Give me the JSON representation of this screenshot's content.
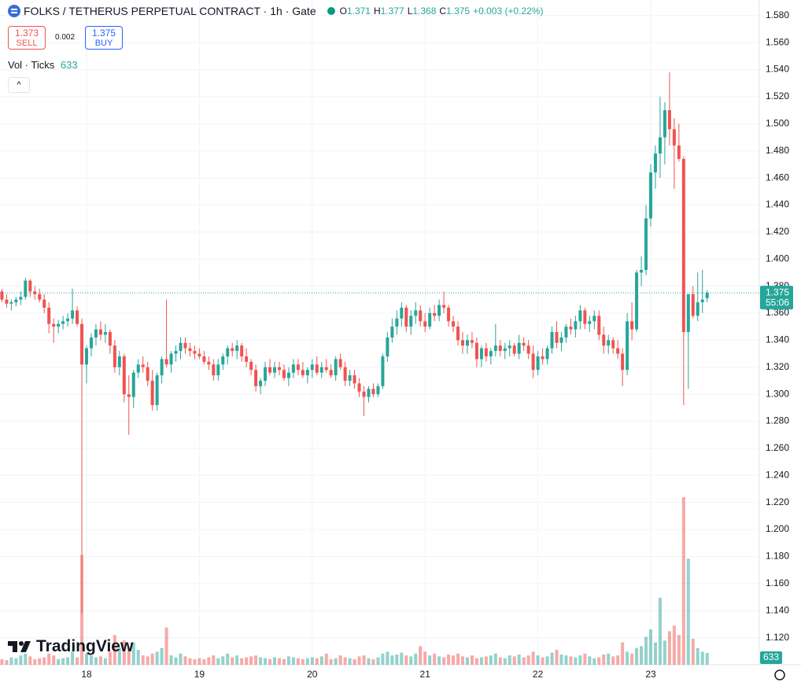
{
  "chart_data": {
    "type": "candlestick",
    "header": {
      "symbol": "FOLKS / TETHERUS PERPETUAL CONTRACT · 1h · Gate",
      "o": "O",
      "h": "H",
      "l": "L",
      "c": "C",
      "change": "+0.003 (+0.22%)",
      "sell_price": "1.373",
      "sell": "SELL",
      "spread": "0.002",
      "buy_price": "1.375",
      "buy": "BUY",
      "volume_title": "Vol · Ticks",
      "countdown": "55:06",
      "brand": "TradingView"
    },
    "up_color": "#26a69a",
    "down_color": "#ef5350",
    "grid": true,
    "ylim": [
      1.1,
      1.5915
    ],
    "yticks": [
      {
        "value": 1.12,
        "label": "1.120"
      },
      {
        "value": 1.14,
        "label": "1.140"
      },
      {
        "value": 1.16,
        "label": "1.160"
      },
      {
        "value": 1.18,
        "label": "1.180"
      },
      {
        "value": 1.2,
        "label": "1.200"
      },
      {
        "value": 1.22,
        "label": "1.220"
      },
      {
        "value": 1.24,
        "label": "1.240"
      },
      {
        "value": 1.26,
        "label": "1.260"
      },
      {
        "value": 1.28,
        "label": "1.280"
      },
      {
        "value": 1.3,
        "label": "1.300"
      },
      {
        "value": 1.32,
        "label": "1.320"
      },
      {
        "value": 1.34,
        "label": "1.340"
      },
      {
        "value": 1.36,
        "label": "1.360"
      },
      {
        "value": 1.38,
        "label": "1.380"
      },
      {
        "value": 1.4,
        "label": "1.400"
      },
      {
        "value": 1.42,
        "label": "1.420"
      },
      {
        "value": 1.44,
        "label": "1.440"
      },
      {
        "value": 1.46,
        "label": "1.460"
      },
      {
        "value": 1.48,
        "label": "1.480"
      },
      {
        "value": 1.5,
        "label": "1.500"
      },
      {
        "value": 1.52,
        "label": "1.520"
      },
      {
        "value": 1.54,
        "label": "1.540"
      },
      {
        "value": 1.56,
        "label": "1.560"
      },
      {
        "value": 1.58,
        "label": "1.580"
      }
    ],
    "volume_ylim": [
      0,
      30000
    ],
    "categories": [
      null,
      null,
      null,
      null,
      null,
      null,
      null,
      null,
      null,
      null,
      null,
      null,
      null,
      null,
      null,
      null,
      null,
      null,
      "18",
      null,
      null,
      null,
      null,
      null,
      null,
      null,
      null,
      null,
      null,
      null,
      null,
      null,
      null,
      null,
      null,
      null,
      null,
      null,
      null,
      null,
      null,
      null,
      "19",
      null,
      null,
      null,
      null,
      null,
      null,
      null,
      null,
      null,
      null,
      null,
      null,
      null,
      null,
      null,
      null,
      null,
      null,
      null,
      null,
      null,
      null,
      null,
      "20",
      null,
      null,
      null,
      null,
      null,
      null,
      null,
      null,
      null,
      null,
      null,
      null,
      null,
      null,
      null,
      null,
      null,
      null,
      null,
      null,
      null,
      null,
      null,
      "21",
      null,
      null,
      null,
      null,
      null,
      null,
      null,
      null,
      null,
      null,
      null,
      null,
      null,
      null,
      null,
      null,
      null,
      null,
      null,
      null,
      null,
      null,
      null,
      "22",
      null,
      null,
      null,
      null,
      null,
      null,
      null,
      null,
      null,
      null,
      null,
      null,
      null,
      null,
      null,
      null,
      null,
      null,
      null,
      null,
      null,
      null,
      null,
      "23",
      null,
      null,
      null,
      null,
      null,
      null,
      null,
      null,
      null,
      null,
      null,
      null
    ],
    "candles": [
      [
        1.376,
        1.378,
        1.368,
        1.37
      ],
      [
        1.37,
        1.374,
        1.364,
        1.367
      ],
      [
        1.367,
        1.37,
        1.362,
        1.368
      ],
      [
        1.368,
        1.372,
        1.365,
        1.37
      ],
      [
        1.37,
        1.376,
        1.366,
        1.372
      ],
      [
        1.372,
        1.386,
        1.37,
        1.384
      ],
      [
        1.384,
        1.385,
        1.372,
        1.376
      ],
      [
        1.376,
        1.38,
        1.37,
        1.374
      ],
      [
        1.374,
        1.378,
        1.368,
        1.37
      ],
      [
        1.37,
        1.374,
        1.36,
        1.364
      ],
      [
        1.364,
        1.368,
        1.345,
        1.352
      ],
      [
        1.352,
        1.356,
        1.338,
        1.35
      ],
      [
        1.35,
        1.355,
        1.345,
        1.352
      ],
      [
        1.352,
        1.358,
        1.348,
        1.354
      ],
      [
        1.354,
        1.36,
        1.35,
        1.356
      ],
      [
        1.356,
        1.378,
        1.352,
        1.362
      ],
      [
        1.362,
        1.365,
        1.35,
        1.352
      ],
      [
        1.352,
        1.356,
        1.138,
        1.322
      ],
      [
        1.322,
        1.336,
        1.308,
        1.334
      ],
      [
        1.334,
        1.345,
        1.328,
        1.342
      ],
      [
        1.342,
        1.352,
        1.336,
        1.348
      ],
      [
        1.348,
        1.354,
        1.34,
        1.344
      ],
      [
        1.344,
        1.352,
        1.338,
        1.346
      ],
      [
        1.346,
        1.348,
        1.33,
        1.336
      ],
      [
        1.336,
        1.34,
        1.316,
        1.32
      ],
      [
        1.32,
        1.332,
        1.314,
        1.328
      ],
      [
        1.328,
        1.33,
        1.294,
        1.3
      ],
      [
        1.3,
        1.314,
        1.27,
        1.298
      ],
      [
        1.298,
        1.318,
        1.29,
        1.316
      ],
      [
        1.316,
        1.326,
        1.312,
        1.322
      ],
      [
        1.322,
        1.328,
        1.316,
        1.32
      ],
      [
        1.32,
        1.324,
        1.306,
        1.31
      ],
      [
        1.31,
        1.318,
        1.288,
        1.292
      ],
      [
        1.292,
        1.316,
        1.288,
        1.314
      ],
      [
        1.314,
        1.328,
        1.308,
        1.326
      ],
      [
        1.326,
        1.37,
        1.32,
        1.322
      ],
      [
        1.322,
        1.332,
        1.316,
        1.33
      ],
      [
        1.33,
        1.336,
        1.324,
        1.332
      ],
      [
        1.332,
        1.342,
        1.326,
        1.338
      ],
      [
        1.338,
        1.342,
        1.33,
        1.334
      ],
      [
        1.334,
        1.338,
        1.328,
        1.332
      ],
      [
        1.332,
        1.336,
        1.326,
        1.33
      ],
      [
        1.33,
        1.334,
        1.326,
        1.328
      ],
      [
        1.328,
        1.332,
        1.322,
        1.324
      ],
      [
        1.324,
        1.328,
        1.318,
        1.322
      ],
      [
        1.322,
        1.326,
        1.31,
        1.314
      ],
      [
        1.314,
        1.326,
        1.31,
        1.322
      ],
      [
        1.322,
        1.33,
        1.318,
        1.328
      ],
      [
        1.328,
        1.336,
        1.322,
        1.334
      ],
      [
        1.334,
        1.338,
        1.328,
        1.332
      ],
      [
        1.332,
        1.34,
        1.326,
        1.336
      ],
      [
        1.336,
        1.338,
        1.324,
        1.328
      ],
      [
        1.328,
        1.334,
        1.32,
        1.324
      ],
      [
        1.324,
        1.326,
        1.314,
        1.318
      ],
      [
        1.318,
        1.322,
        1.302,
        1.306
      ],
      [
        1.306,
        1.312,
        1.3,
        1.31
      ],
      [
        1.31,
        1.324,
        1.306,
        1.32
      ],
      [
        1.32,
        1.326,
        1.314,
        1.316
      ],
      [
        1.316,
        1.324,
        1.312,
        1.32
      ],
      [
        1.32,
        1.324,
        1.314,
        1.318
      ],
      [
        1.318,
        1.322,
        1.31,
        1.312
      ],
      [
        1.312,
        1.32,
        1.306,
        1.316
      ],
      [
        1.316,
        1.326,
        1.312,
        1.322
      ],
      [
        1.322,
        1.326,
        1.314,
        1.318
      ],
      [
        1.318,
        1.324,
        1.312,
        1.314
      ],
      [
        1.314,
        1.32,
        1.308,
        1.318
      ],
      [
        1.318,
        1.326,
        1.312,
        1.322
      ],
      [
        1.322,
        1.328,
        1.314,
        1.316
      ],
      [
        1.316,
        1.324,
        1.312,
        1.32
      ],
      [
        1.32,
        1.326,
        1.316,
        1.318
      ],
      [
        1.318,
        1.322,
        1.312,
        1.314
      ],
      [
        1.314,
        1.328,
        1.31,
        1.326
      ],
      [
        1.326,
        1.33,
        1.318,
        1.32
      ],
      [
        1.32,
        1.324,
        1.306,
        1.31
      ],
      [
        1.31,
        1.318,
        1.306,
        1.314
      ],
      [
        1.314,
        1.318,
        1.304,
        1.308
      ],
      [
        1.308,
        1.312,
        1.298,
        1.302
      ],
      [
        1.302,
        1.306,
        1.284,
        1.298
      ],
      [
        1.298,
        1.306,
        1.294,
        1.304
      ],
      [
        1.304,
        1.308,
        1.298,
        1.3
      ],
      [
        1.3,
        1.308,
        1.298,
        1.306
      ],
      [
        1.306,
        1.33,
        1.304,
        1.328
      ],
      [
        1.328,
        1.346,
        1.324,
        1.342
      ],
      [
        1.342,
        1.356,
        1.338,
        1.35
      ],
      [
        1.35,
        1.362,
        1.344,
        1.356
      ],
      [
        1.356,
        1.368,
        1.35,
        1.364
      ],
      [
        1.364,
        1.366,
        1.346,
        1.35
      ],
      [
        1.35,
        1.362,
        1.344,
        1.358
      ],
      [
        1.358,
        1.368,
        1.352,
        1.362
      ],
      [
        1.362,
        1.366,
        1.35,
        1.354
      ],
      [
        1.354,
        1.36,
        1.346,
        1.35
      ],
      [
        1.35,
        1.364,
        1.348,
        1.36
      ],
      [
        1.36,
        1.366,
        1.354,
        1.358
      ],
      [
        1.358,
        1.37,
        1.354,
        1.366
      ],
      [
        1.366,
        1.376,
        1.36,
        1.364
      ],
      [
        1.364,
        1.366,
        1.35,
        1.354
      ],
      [
        1.354,
        1.358,
        1.346,
        1.35
      ],
      [
        1.35,
        1.354,
        1.336,
        1.34
      ],
      [
        1.34,
        1.346,
        1.33,
        1.336
      ],
      [
        1.336,
        1.344,
        1.33,
        1.34
      ],
      [
        1.34,
        1.346,
        1.334,
        1.338
      ],
      [
        1.338,
        1.342,
        1.32,
        1.326
      ],
      [
        1.326,
        1.336,
        1.32,
        1.334
      ],
      [
        1.334,
        1.338,
        1.324,
        1.328
      ],
      [
        1.328,
        1.334,
        1.322,
        1.332
      ],
      [
        1.332,
        1.352,
        1.328,
        1.336
      ],
      [
        1.336,
        1.34,
        1.328,
        1.332
      ],
      [
        1.332,
        1.338,
        1.326,
        1.334
      ],
      [
        1.334,
        1.34,
        1.328,
        1.336
      ],
      [
        1.336,
        1.338,
        1.328,
        1.33
      ],
      [
        1.33,
        1.344,
        1.326,
        1.338
      ],
      [
        1.338,
        1.342,
        1.332,
        1.336
      ],
      [
        1.336,
        1.34,
        1.326,
        1.33
      ],
      [
        1.33,
        1.336,
        1.312,
        1.318
      ],
      [
        1.318,
        1.332,
        1.314,
        1.328
      ],
      [
        1.328,
        1.334,
        1.322,
        1.326
      ],
      [
        1.326,
        1.336,
        1.322,
        1.334
      ],
      [
        1.334,
        1.35,
        1.33,
        1.346
      ],
      [
        1.346,
        1.354,
        1.334,
        1.338
      ],
      [
        1.338,
        1.346,
        1.332,
        1.342
      ],
      [
        1.342,
        1.352,
        1.338,
        1.35
      ],
      [
        1.35,
        1.356,
        1.344,
        1.348
      ],
      [
        1.348,
        1.358,
        1.342,
        1.354
      ],
      [
        1.354,
        1.366,
        1.348,
        1.362
      ],
      [
        1.362,
        1.364,
        1.348,
        1.352
      ],
      [
        1.352,
        1.358,
        1.346,
        1.354
      ],
      [
        1.354,
        1.362,
        1.348,
        1.358
      ],
      [
        1.358,
        1.362,
        1.34,
        1.344
      ],
      [
        1.344,
        1.35,
        1.33,
        1.336
      ],
      [
        1.336,
        1.344,
        1.33,
        1.34
      ],
      [
        1.34,
        1.342,
        1.33,
        1.334
      ],
      [
        1.334,
        1.34,
        1.326,
        1.33
      ],
      [
        1.33,
        1.334,
        1.306,
        1.318
      ],
      [
        1.318,
        1.36,
        1.314,
        1.354
      ],
      [
        1.354,
        1.368,
        1.34,
        1.348
      ],
      [
        1.348,
        1.392,
        1.346,
        1.39
      ],
      [
        1.39,
        1.402,
        1.38,
        1.392
      ],
      [
        1.392,
        1.44,
        1.388,
        1.43
      ],
      [
        1.43,
        1.47,
        1.424,
        1.464
      ],
      [
        1.464,
        1.484,
        1.452,
        1.478
      ],
      [
        1.478,
        1.52,
        1.46,
        1.49
      ],
      [
        1.49,
        1.516,
        1.47,
        1.51
      ],
      [
        1.51,
        1.538,
        1.484,
        1.496
      ],
      [
        1.496,
        1.504,
        1.452,
        1.484
      ],
      [
        1.484,
        1.5,
        1.472,
        1.474
      ],
      [
        1.474,
        1.476,
        1.292,
        1.346
      ],
      [
        1.346,
        1.374,
        1.304,
        1.374
      ],
      [
        1.374,
        1.38,
        1.356,
        1.358
      ],
      [
        1.358,
        1.39,
        1.354,
        1.368
      ],
      [
        1.368,
        1.392,
        1.36,
        1.37
      ],
      [
        1.371,
        1.377,
        1.368,
        1.375
      ]
    ],
    "volume": [
      300,
      250,
      400,
      350,
      500,
      600,
      450,
      300,
      350,
      400,
      600,
      500,
      300,
      350,
      400,
      700,
      400,
      5900,
      600,
      500,
      400,
      450,
      350,
      700,
      1600,
      900,
      1300,
      900,
      1200,
      800,
      500,
      450,
      600,
      700,
      900,
      2000,
      500,
      400,
      600,
      450,
      350,
      300,
      350,
      300,
      400,
      500,
      350,
      450,
      600,
      400,
      500,
      350,
      400,
      450,
      500,
      400,
      350,
      300,
      400,
      350,
      300,
      450,
      400,
      350,
      300,
      350,
      400,
      350,
      450,
      600,
      300,
      350,
      500,
      400,
      350,
      300,
      450,
      500,
      350,
      300,
      400,
      600,
      700,
      500,
      550,
      650,
      500,
      450,
      600,
      1000,
      700,
      500,
      600,
      450,
      400,
      550,
      500,
      600,
      450,
      400,
      500,
      350,
      400,
      450,
      500,
      600,
      400,
      350,
      500,
      450,
      550,
      400,
      500,
      700,
      500,
      400,
      450,
      650,
      800,
      550,
      500,
      450,
      400,
      500,
      600,
      450,
      350,
      400,
      550,
      600,
      450,
      500,
      1200,
      700,
      600,
      900,
      1000,
      1500,
      1900,
      1200,
      3600,
      1300,
      1800,
      2100,
      1600,
      9000,
      5700,
      1400,
      900,
      700,
      633
    ]
  }
}
